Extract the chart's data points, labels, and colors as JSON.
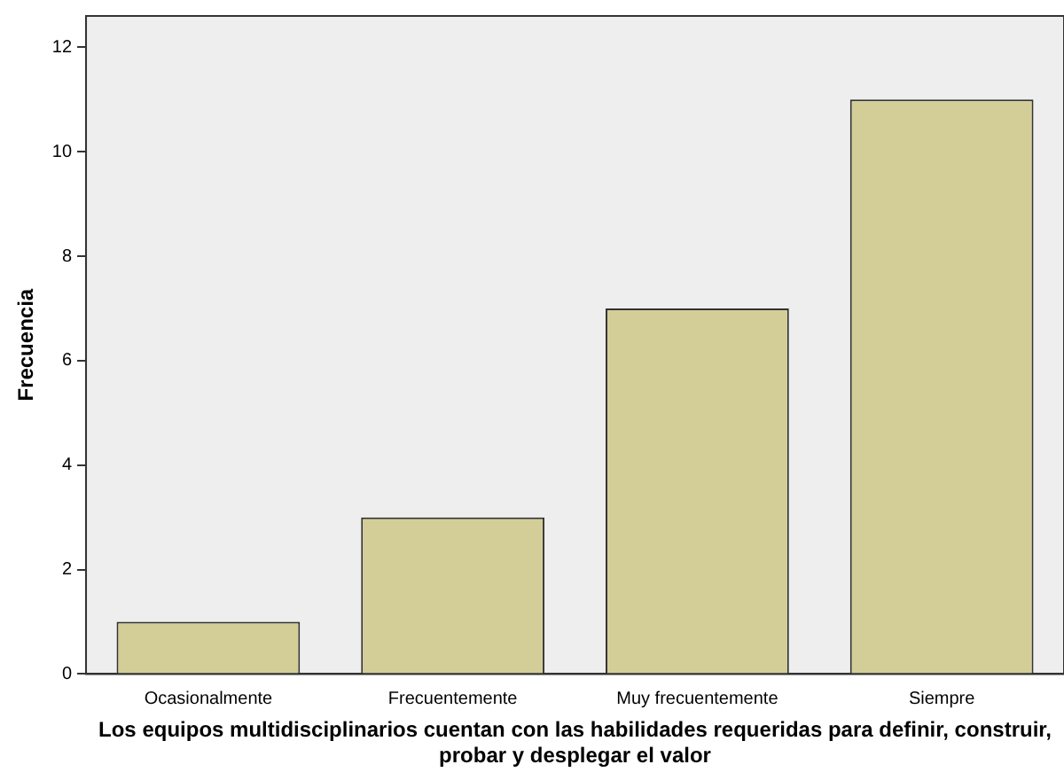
{
  "chart_data": {
    "type": "bar",
    "xlabel": "Los equipos multidisciplinarios cuentan con las habilidades requeridas para definir, construir, probar y desplegar el valor",
    "ylabel": "Frecuencia",
    "categories": [
      "Ocasionalmente",
      "Frecuentemente",
      "Muy frecuentemente",
      "Siempre"
    ],
    "values": [
      1,
      3,
      7,
      11
    ],
    "color": "#d3ce97",
    "ylim": [
      0,
      12.6
    ],
    "yticks": [
      0,
      2,
      4,
      6,
      8,
      10,
      12
    ],
    "grid": false,
    "legend": false
  }
}
